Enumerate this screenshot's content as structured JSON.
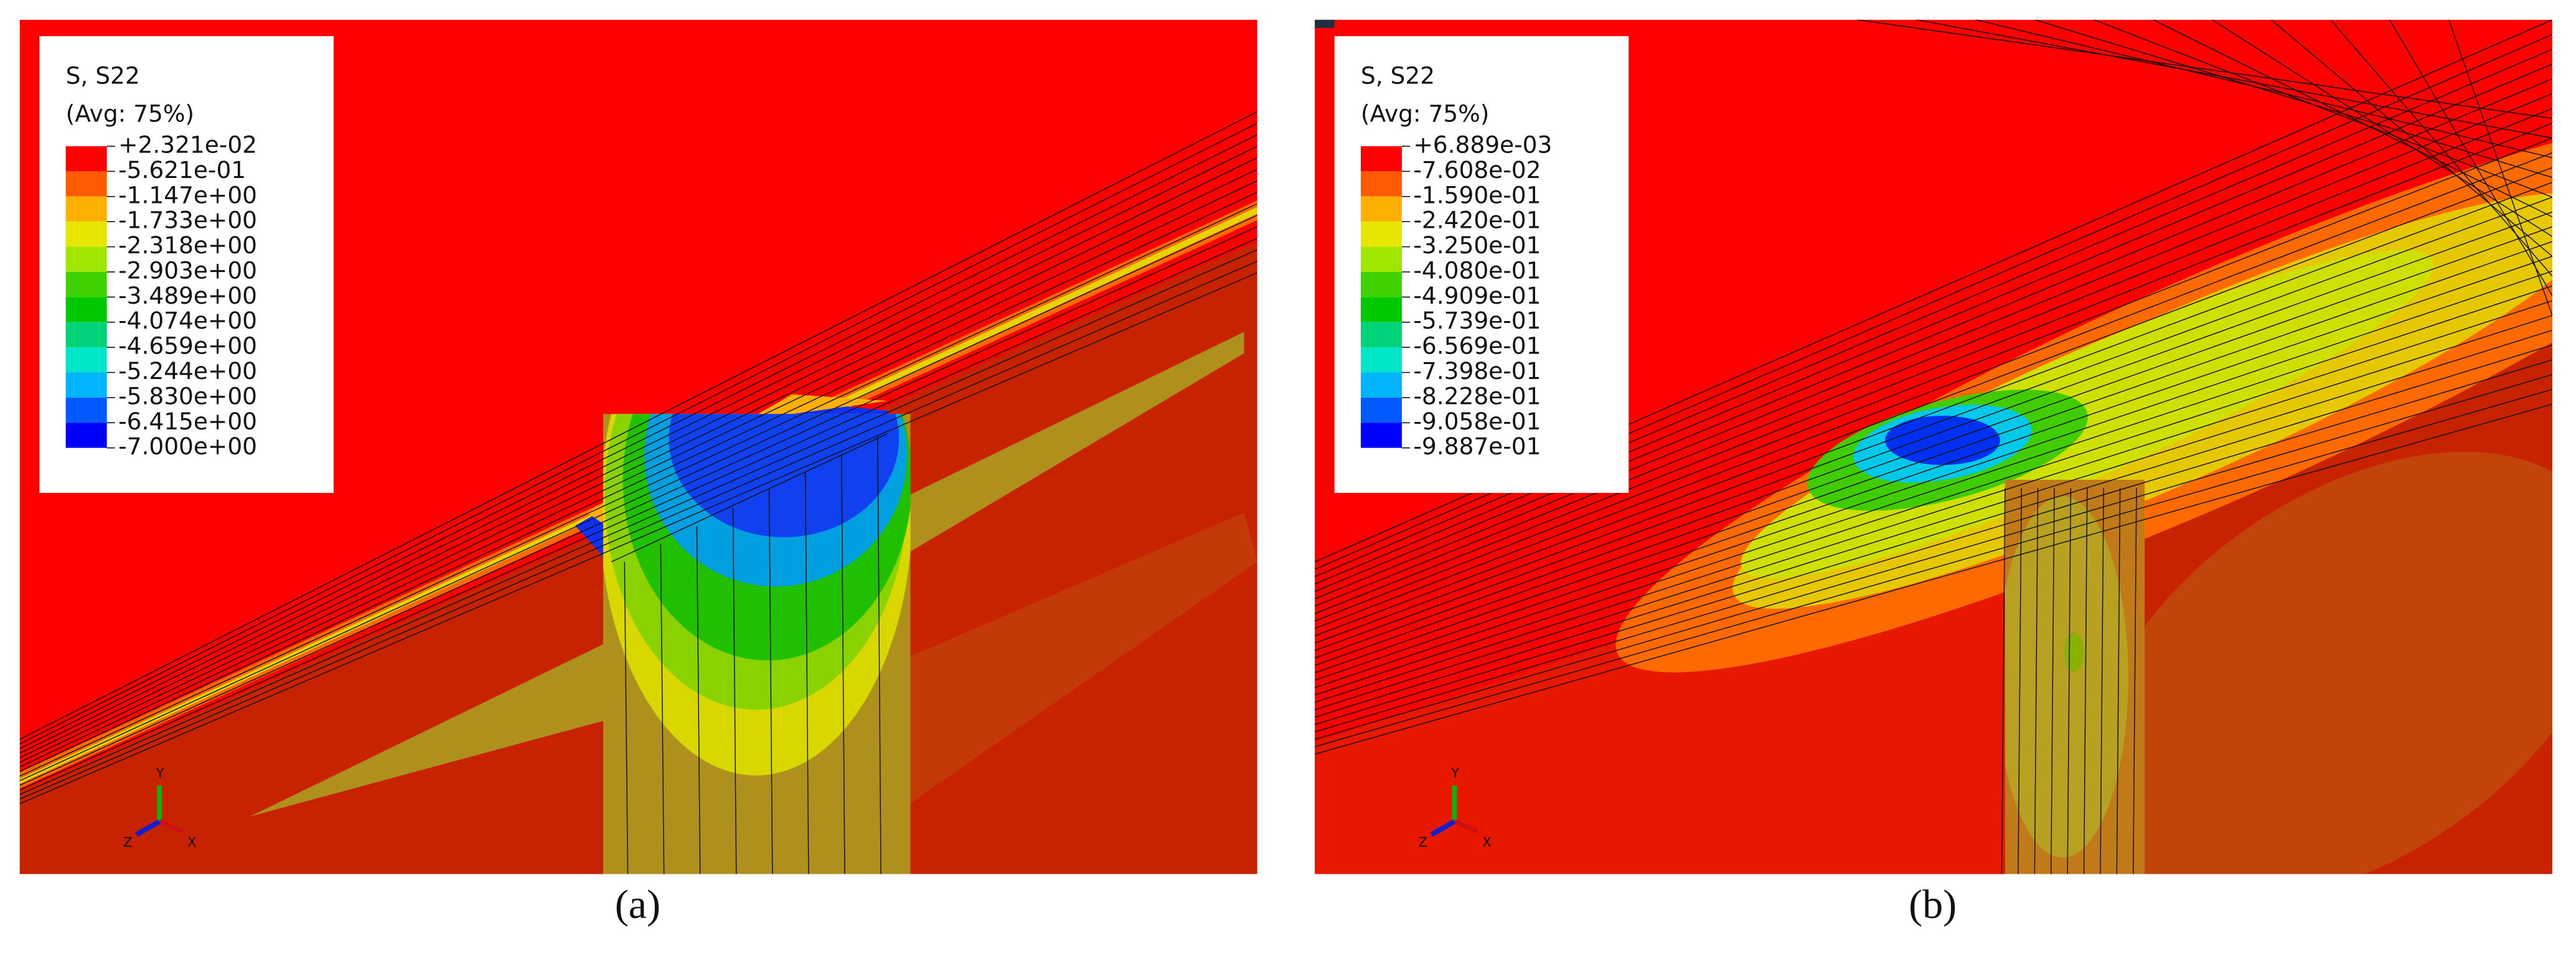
{
  "panels": [
    {
      "legend": {
        "title": "S, S22",
        "subtitle": "(Avg: 75%)",
        "labels": [
          "+2.321e-02",
          "-5.621e-01",
          "-1.147e+00",
          "-1.733e+00",
          "-2.318e+00",
          "-2.903e+00",
          "-3.489e+00",
          "-4.074e+00",
          "-4.659e+00",
          "-5.244e+00",
          "-5.830e+00",
          "-6.415e+00",
          "-7.000e+00"
        ],
        "colors": [
          "#ff0000",
          "#ff5a00",
          "#ffb000",
          "#e6e600",
          "#a0e600",
          "#40d200",
          "#00c800",
          "#00d27a",
          "#00e6c8",
          "#00b4ff",
          "#005aff",
          "#0000ff"
        ]
      },
      "axes": {
        "y": "Y",
        "z": "Z",
        "x": "X"
      },
      "caption": "(a)"
    },
    {
      "legend": {
        "title": "S, S22",
        "subtitle": "(Avg: 75%)",
        "labels": [
          "+6.889e-03",
          "-7.608e-02",
          "-1.590e-01",
          "-2.420e-01",
          "-3.250e-01",
          "-4.080e-01",
          "-4.909e-01",
          "-5.739e-01",
          "-6.569e-01",
          "-7.398e-01",
          "-8.228e-01",
          "-9.058e-01",
          "-9.887e-01"
        ],
        "colors": [
          "#ff0000",
          "#ff5a00",
          "#ffb000",
          "#e6e600",
          "#a0e600",
          "#40d200",
          "#00c800",
          "#00d27a",
          "#00e6c8",
          "#00b4ff",
          "#005aff",
          "#0000ff"
        ]
      },
      "axes": {
        "y": "Y",
        "z": "Z",
        "x": "X"
      },
      "caption": "(b)"
    }
  ]
}
